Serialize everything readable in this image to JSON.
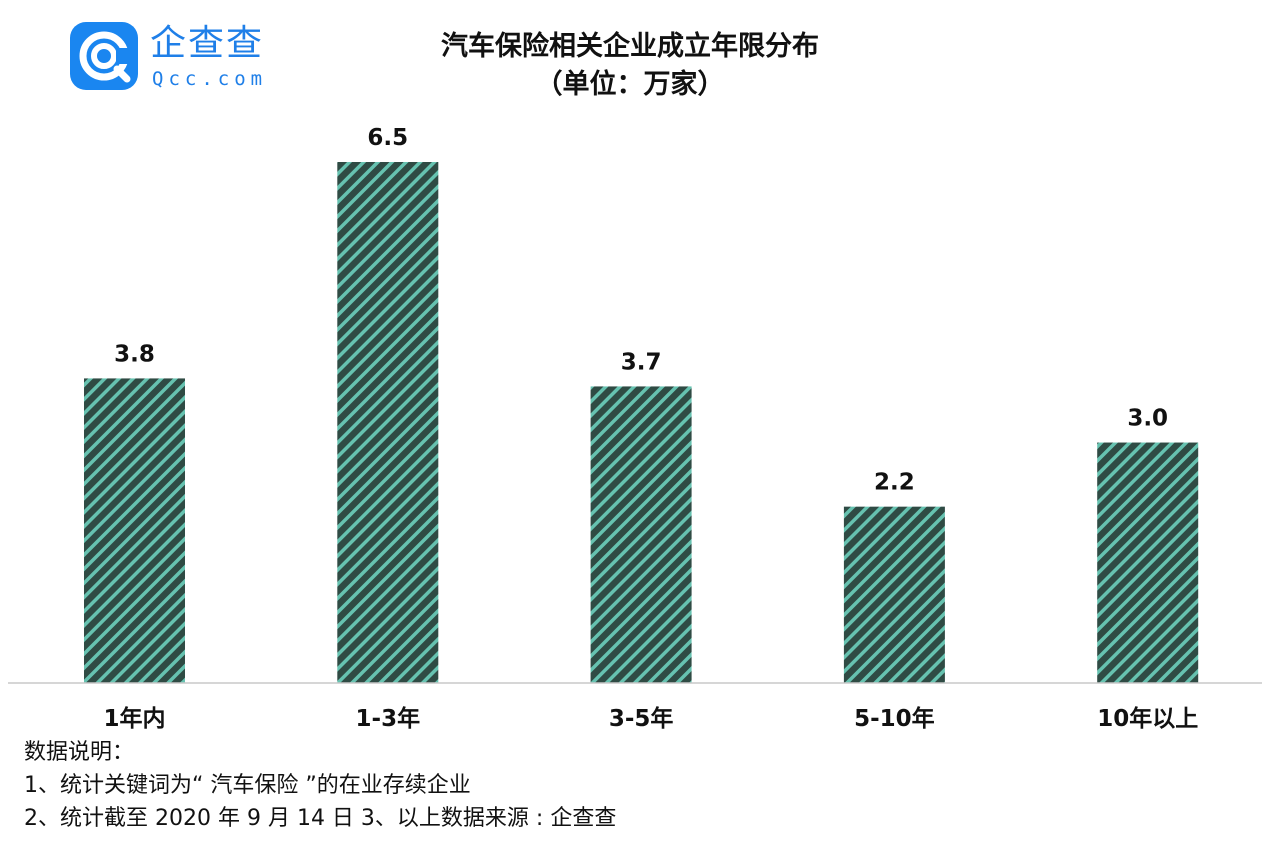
{
  "brand": {
    "name": "企查查",
    "domain": "Qcc.com",
    "color": "#1a86f0"
  },
  "title": "汽车保险相关企业成立年限分布",
  "subtitle": "（单位：万家）",
  "notes": {
    "heading": "数据说明：",
    "line1": "1、统计关键词为“ 汽车保险 ”的在业存续企业",
    "line2": "2、统计截至 2020 年 9 月 14 日  3、以上数据来源 : 企查查"
  },
  "chart_data": {
    "type": "bar",
    "title": "汽车保险相关企业成立年限分布",
    "subtitle": "（单位：万家）",
    "categories": [
      "1年内",
      "1-3年",
      "3-5年",
      "5-10年",
      "10年以上"
    ],
    "values": [
      3.8,
      6.5,
      3.7,
      2.2,
      3.0
    ],
    "value_labels": [
      "3.8",
      "6.5",
      "3.7",
      "2.2",
      "3.0"
    ],
    "xlabel": "",
    "ylabel": "",
    "ylim": [
      0,
      6.5
    ],
    "grid": false,
    "legend": "none",
    "bar_fill": "#2f4b44",
    "stripe_color": "#66c2b0",
    "baseline_color": "#c8c8c8"
  }
}
